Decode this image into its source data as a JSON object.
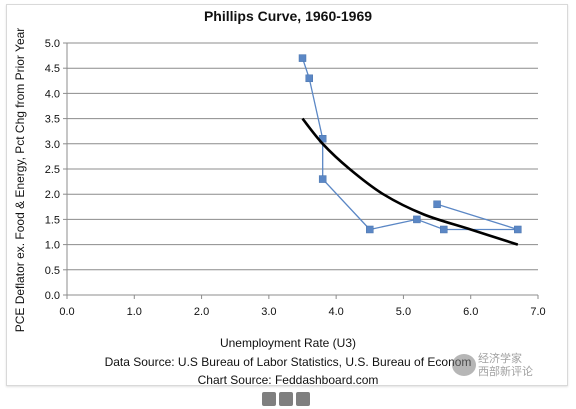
{
  "chart_data": {
    "type": "scatter",
    "title": "Phillips Curve, 1960-1969",
    "xlabel": "Unemployment Rate (U3)",
    "ylabel": "PCE Deflator ex. Food & Energy, Pct Chg from Prior Year",
    "xlim": [
      0.0,
      7.0
    ],
    "ylim": [
      0.0,
      5.0
    ],
    "x_ticks": [
      "0.0",
      "1.0",
      "2.0",
      "3.0",
      "4.0",
      "5.0",
      "6.0",
      "7.0"
    ],
    "y_ticks": [
      "0.0",
      "0.5",
      "1.0",
      "1.5",
      "2.0",
      "2.5",
      "3.0",
      "3.5",
      "4.0",
      "4.5",
      "5.0"
    ],
    "grid": "horizontal",
    "legend": "none",
    "series": [
      {
        "kind": "line-with-markers",
        "color": "#5b87c5",
        "marker": "square",
        "points": [
          {
            "x": 5.5,
            "y": 1.8
          },
          {
            "x": 6.7,
            "y": 1.3
          },
          {
            "x": 5.6,
            "y": 1.3
          },
          {
            "x": 5.2,
            "y": 1.5
          },
          {
            "x": 4.5,
            "y": 1.3
          },
          {
            "x": 3.8,
            "y": 2.3
          },
          {
            "x": 3.8,
            "y": 3.1
          },
          {
            "x": 3.6,
            "y": 4.3
          },
          {
            "x": 3.5,
            "y": 4.7
          }
        ]
      },
      {
        "kind": "trend-curve",
        "color": "#000000",
        "points": [
          {
            "x": 3.5,
            "y": 3.5
          },
          {
            "x": 3.8,
            "y": 3.0
          },
          {
            "x": 4.2,
            "y": 2.5
          },
          {
            "x": 4.7,
            "y": 2.0
          },
          {
            "x": 5.3,
            "y": 1.6
          },
          {
            "x": 6.0,
            "y": 1.3
          },
          {
            "x": 6.7,
            "y": 1.0
          }
        ]
      }
    ]
  },
  "sources": {
    "data_source": "Data Source: U.S Bureau of Labor Statistics, U.S. Bureau of Econom",
    "chart_source": "Chart Source: Feddashboard.com"
  },
  "watermark": {
    "line1": "经济学家",
    "line2": "西部新评论"
  },
  "pager": {
    "count": 3
  }
}
